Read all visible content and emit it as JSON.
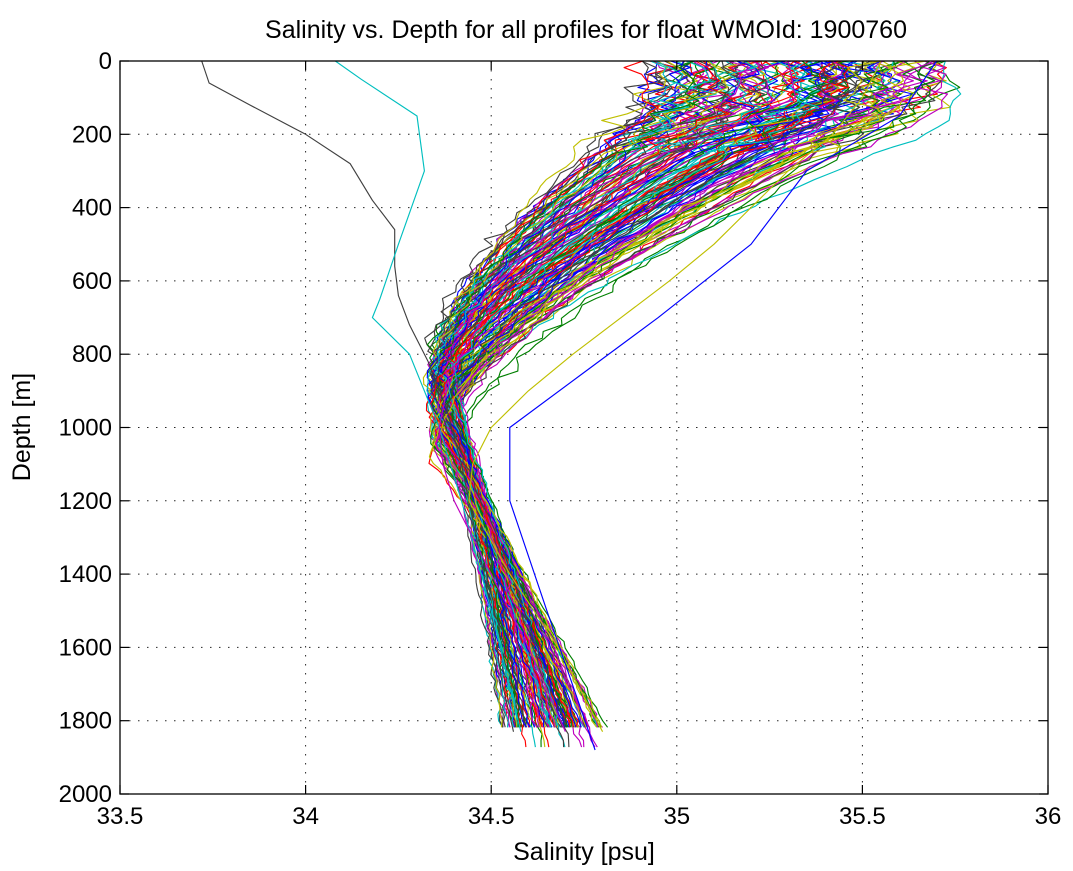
{
  "chart_data": {
    "type": "line",
    "title": "Salinity vs. Depth for all profiles for float WMOId: 1900760",
    "xlabel": "Salinity [psu]",
    "ylabel": "Depth [m]",
    "xlim": [
      33.5,
      36
    ],
    "ylim": [
      0,
      2000
    ],
    "y_reversed": true,
    "grid": true,
    "legend": "none",
    "x_ticks": [
      "33.5",
      "34",
      "34.5",
      "35",
      "35.5",
      "36"
    ],
    "y_ticks": [
      "0",
      "200",
      "400",
      "600",
      "800",
      "1000",
      "1200",
      "1400",
      "1600",
      "1800",
      "2000"
    ],
    "palette": [
      "#0000ff",
      "#008000",
      "#ff0000",
      "#00bfbf",
      "#bf00bf",
      "#bfbf00",
      "#404040"
    ],
    "num_profiles_estimate": 140,
    "representative_profiles": [
      {
        "depth": [
          0,
          60,
          120,
          200,
          280,
          380,
          460,
          560,
          640,
          720,
          820,
          950,
          1100,
          1300,
          1500,
          1700,
          1830
        ],
        "salinity": [
          33.72,
          33.74,
          33.85,
          34.0,
          34.12,
          34.18,
          34.24,
          34.24,
          34.25,
          34.28,
          34.33,
          34.38,
          34.42,
          34.46,
          34.5,
          34.53,
          34.56
        ]
      },
      {
        "depth": [
          0,
          50,
          150,
          300,
          500,
          650,
          700,
          800,
          1000,
          1200,
          1500,
          1830
        ],
        "salinity": [
          34.08,
          34.15,
          34.3,
          34.32,
          34.25,
          34.2,
          34.18,
          34.28,
          34.36,
          34.42,
          34.5,
          34.58
        ]
      },
      {
        "depth": [
          0,
          100,
          200,
          300,
          400,
          500,
          600,
          700,
          800,
          900,
          1000,
          1100,
          1200,
          1400,
          1600,
          1830
        ],
        "salinity": [
          35.3,
          35.32,
          35.1,
          34.95,
          34.8,
          34.65,
          34.55,
          34.48,
          34.42,
          34.38,
          34.36,
          34.37,
          34.4,
          34.5,
          34.6,
          34.7
        ]
      },
      {
        "depth": [
          0,
          100,
          200,
          300,
          400,
          500,
          600,
          700,
          800,
          900,
          1000,
          1100,
          1200,
          1400,
          1600,
          1830
        ],
        "salinity": [
          35.55,
          35.5,
          35.42,
          35.3,
          35.2,
          35.1,
          34.98,
          34.85,
          34.72,
          34.6,
          34.5,
          34.45,
          34.44,
          34.55,
          34.68,
          34.8
        ]
      },
      {
        "depth": [
          0,
          150,
          300,
          500,
          700,
          850,
          1000,
          1200,
          1500,
          1880
        ],
        "salinity": [
          35.7,
          35.6,
          35.35,
          35.2,
          34.95,
          34.75,
          34.55,
          34.55,
          34.65,
          34.78
        ]
      }
    ]
  }
}
